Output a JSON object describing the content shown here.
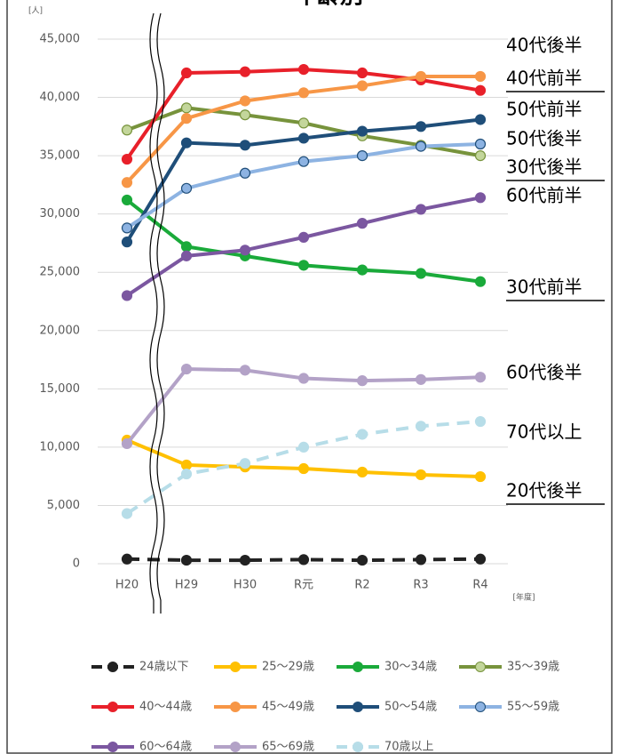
{
  "chart_data": {
    "type": "line",
    "title": "年齢別",
    "y_unit": "[人]",
    "x_unit": "[年度]",
    "categories": [
      "H20",
      "H29",
      "H30",
      "R元",
      "R2",
      "R3",
      "R4"
    ],
    "ylim": [
      0,
      45000
    ],
    "yticks": [
      0,
      {
        "value": 5000,
        "label": "5,000"
      },
      {
        "value": 10000,
        "label": "10,000"
      },
      {
        "value": 15000,
        "label": "15,000"
      },
      {
        "value": 20000,
        "label": "20,000"
      },
      {
        "value": 25000,
        "label": "25,000"
      },
      {
        "value": 30000,
        "label": "30,000"
      },
      {
        "value": 35000,
        "label": "35,000"
      },
      {
        "value": 40000,
        "label": "40,000"
      },
      {
        "value": 45000,
        "label": "45,000"
      }
    ],
    "grid": true,
    "series": [
      {
        "name": "24歳以下",
        "color": "#222222",
        "dashed": true,
        "values": [
          400,
          300,
          300,
          350,
          300,
          350,
          400
        ]
      },
      {
        "name": "25～29歳",
        "color": "#ffc000",
        "values": [
          10600,
          8470,
          8300,
          8160,
          7860,
          7630,
          7470
        ]
      },
      {
        "name": "30～34歳",
        "color": "#1aaa3a",
        "values": [
          31200,
          27200,
          26400,
          25600,
          25200,
          24900,
          24200
        ]
      },
      {
        "name": "35～39歳",
        "color": "#77933c",
        "marker_fill": "#c3d69b",
        "values": [
          37200,
          39100,
          38500,
          37800,
          36700,
          35900,
          35000
        ]
      },
      {
        "name": "40～44歳",
        "color": "#e8202a",
        "values": [
          34700,
          42100,
          42200,
          42400,
          42100,
          41500,
          40600
        ]
      },
      {
        "name": "45～49歳",
        "color": "#f79646",
        "values": [
          32700,
          38200,
          39700,
          40400,
          41000,
          41800,
          41800
        ]
      },
      {
        "name": "50～54歳",
        "color": "#1f4e79",
        "values": [
          27600,
          36100,
          35900,
          36500,
          37100,
          37500,
          38100
        ]
      },
      {
        "name": "55～59歳",
        "color": "#8db3e2",
        "marker_fill": "#8db3e2",
        "marker_stroke": "#1f4e79",
        "values": [
          28800,
          32200,
          33500,
          34500,
          35000,
          35800,
          36000
        ]
      },
      {
        "name": "60～64歳",
        "color": "#7b57a0",
        "values": [
          23000,
          26400,
          26900,
          28000,
          29200,
          30400,
          31400
        ]
      },
      {
        "name": "65～69歳",
        "color": "#b3a2c7",
        "values": [
          10300,
          16700,
          16600,
          15900,
          15700,
          15800,
          16000
        ]
      },
      {
        "name": "70歳以上",
        "color": "#b7dde8",
        "dashed": true,
        "values": [
          4300,
          7700,
          8600,
          10000,
          11100,
          11800,
          12200
        ]
      }
    ],
    "annotations": [
      {
        "text": "40代後半"
      },
      {
        "text": "40代前半",
        "underline": true
      },
      {
        "text": "50代前半"
      },
      {
        "text": "50代後半"
      },
      {
        "text": "30代後半",
        "underline": true
      },
      {
        "text": "60代前半"
      },
      {
        "text": "30代前半",
        "underline": true
      },
      {
        "text": "60代後半"
      },
      {
        "text": "70代以上"
      },
      {
        "text": "20代後半",
        "underline": true
      }
    ]
  }
}
